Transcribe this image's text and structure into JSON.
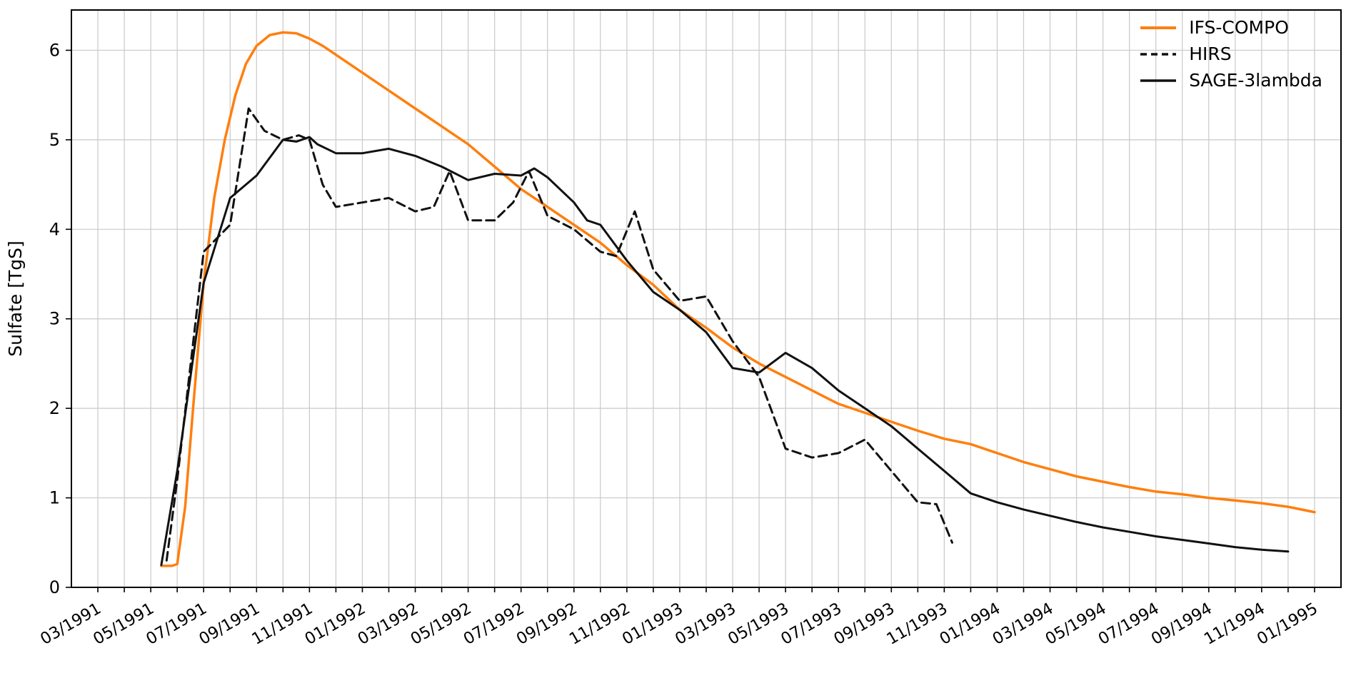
{
  "figure": {
    "background": "#ffffff",
    "plot_border_color": "#000000",
    "grid_color": "#c9c9c9"
  },
  "chart_data": {
    "type": "line",
    "title": "",
    "xlabel": "",
    "ylabel": "Sulfate [TgS]",
    "x_unit": "month index, 0 = 03/1991",
    "xlim": [
      -1,
      47
    ],
    "ylim": [
      0,
      6.45
    ],
    "y_ticks": [
      0,
      1,
      2,
      3,
      4,
      5,
      6
    ],
    "x_tick_positions": [
      0,
      2,
      4,
      6,
      8,
      10,
      12,
      14,
      16,
      18,
      20,
      22,
      24,
      26,
      28,
      30,
      32,
      34,
      36,
      38,
      40,
      42,
      44,
      46
    ],
    "x_tick_labels": [
      "03/1991",
      "05/1991",
      "07/1991",
      "09/1991",
      "11/1991",
      "01/1992",
      "03/1992",
      "05/1992",
      "07/1992",
      "09/1992",
      "11/1992",
      "01/1993",
      "03/1993",
      "05/1993",
      "07/1993",
      "09/1993",
      "11/1993",
      "01/1994",
      "03/1994",
      "05/1994",
      "07/1994",
      "09/1994",
      "11/1994",
      "01/1995"
    ],
    "x_grid_every_month": true,
    "grid": true,
    "legend_position": "upper right",
    "series": [
      {
        "name": "IFS-COMPO",
        "color": "#ff7f0e",
        "style": "solid",
        "width": 3.5,
        "x": [
          2.4,
          2.8,
          3.0,
          3.3,
          3.6,
          4.0,
          4.4,
          4.8,
          5.2,
          5.6,
          6.0,
          6.5,
          7.0,
          7.5,
          8.0,
          8.5,
          9.0,
          10,
          11,
          12,
          13,
          14,
          15,
          16,
          17,
          18,
          19,
          20,
          21,
          22,
          23,
          24,
          25,
          26,
          27,
          28,
          29,
          30,
          31,
          32,
          33,
          34,
          35,
          36,
          37,
          38,
          39,
          40,
          41,
          42,
          43,
          44,
          45,
          46
        ],
        "y": [
          0.24,
          0.24,
          0.26,
          0.9,
          2.0,
          3.4,
          4.35,
          5.0,
          5.5,
          5.85,
          6.05,
          6.17,
          6.2,
          6.19,
          6.13,
          6.05,
          5.95,
          5.75,
          5.55,
          5.35,
          5.15,
          4.95,
          4.7,
          4.45,
          4.25,
          4.05,
          3.85,
          3.6,
          3.38,
          3.1,
          2.9,
          2.68,
          2.5,
          2.35,
          2.2,
          2.05,
          1.95,
          1.85,
          1.75,
          1.66,
          1.6,
          1.5,
          1.4,
          1.32,
          1.24,
          1.18,
          1.12,
          1.07,
          1.04,
          1.0,
          0.97,
          0.94,
          0.9,
          0.84
        ]
      },
      {
        "name": "HIRS",
        "color": "#111111",
        "style": "dashed",
        "width": 3,
        "x": [
          2.6,
          3,
          4,
          5,
          5.7,
          6.3,
          7,
          7.6,
          8,
          8.5,
          9,
          10,
          11,
          12,
          12.7,
          13.3,
          14,
          15,
          15.7,
          16.3,
          17,
          18,
          19,
          19.6,
          20.3,
          21,
          22,
          23,
          24,
          25,
          26,
          27,
          28,
          29,
          30,
          31,
          31.7,
          32.3
        ],
        "y": [
          0.3,
          1.2,
          3.75,
          4.05,
          5.35,
          5.1,
          5.0,
          5.05,
          5.0,
          4.5,
          4.25,
          4.3,
          4.35,
          4.2,
          4.25,
          4.65,
          4.1,
          4.1,
          4.3,
          4.65,
          4.15,
          4.0,
          3.75,
          3.7,
          4.2,
          3.55,
          3.2,
          3.25,
          2.75,
          2.35,
          1.55,
          1.45,
          1.5,
          1.65,
          1.3,
          0.95,
          0.93,
          0.5
        ]
      },
      {
        "name": "SAGE-3lambda",
        "color": "#111111",
        "style": "solid",
        "width": 3,
        "x": [
          2.4,
          3,
          4,
          5,
          6,
          7,
          7.5,
          8,
          8.3,
          9,
          10,
          11,
          12,
          13,
          14,
          15,
          16,
          16.5,
          17,
          18,
          18.5,
          19,
          20,
          21,
          22,
          23,
          24,
          25,
          26,
          27,
          28,
          29,
          30,
          31,
          32,
          33,
          34,
          35,
          36,
          37,
          38,
          39,
          40,
          41,
          42,
          43,
          44,
          45
        ],
        "y": [
          0.25,
          1.3,
          3.4,
          4.35,
          4.6,
          5.0,
          4.98,
          5.03,
          4.95,
          4.85,
          4.85,
          4.9,
          4.82,
          4.7,
          4.55,
          4.62,
          4.6,
          4.68,
          4.58,
          4.3,
          4.1,
          4.05,
          3.65,
          3.3,
          3.1,
          2.85,
          2.45,
          2.4,
          2.62,
          2.45,
          2.2,
          2.0,
          1.8,
          1.55,
          1.3,
          1.05,
          0.95,
          0.87,
          0.8,
          0.73,
          0.67,
          0.62,
          0.57,
          0.53,
          0.49,
          0.45,
          0.42,
          0.4
        ]
      }
    ]
  }
}
